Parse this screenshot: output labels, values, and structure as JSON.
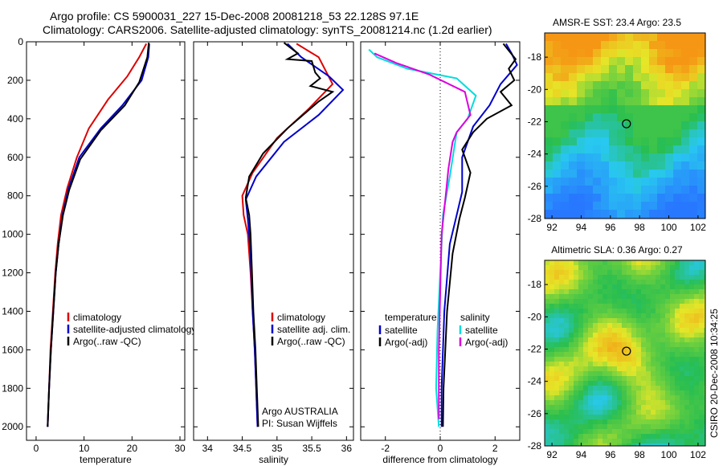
{
  "header": {
    "line1": "Argo profile: CS 5900031_227 15-Dec-2008 20081218_53 22.128S 97.1E",
    "line2": "Climatology: CARS2006. Satellite-adjusted climatology: synTS_20081214.nc (1.2d earlier)"
  },
  "side_stamp": "CSIRO 20-Dec-2008 10:34:25",
  "chart_data": [
    {
      "type": "line",
      "id": "temperature",
      "xlabel": "temperature",
      "ylabel": "",
      "xlim": [
        -2,
        31
      ],
      "ylim": [
        2070,
        0
      ],
      "xticks": [
        0,
        10,
        20,
        30
      ],
      "yticks": [
        0,
        200,
        400,
        600,
        800,
        1000,
        1200,
        1400,
        1600,
        1800,
        2000
      ],
      "legend": [
        "climatology",
        "satellite-adjusted climatology",
        "Argo(..raw -QC)"
      ],
      "series": [
        {
          "name": "climatology",
          "color": "#dd0000",
          "points": [
            [
              23.0,
              10
            ],
            [
              21.5,
              80
            ],
            [
              19,
              180
            ],
            [
              15,
              300
            ],
            [
              11,
              450
            ],
            [
              8.5,
              600
            ],
            [
              6.5,
              760
            ],
            [
              5.2,
              900
            ],
            [
              4.5,
              1050
            ],
            [
              4.0,
              1200
            ],
            [
              3.5,
              1400
            ],
            [
              3.0,
              1600
            ],
            [
              2.7,
              1800
            ],
            [
              2.4,
              2000
            ]
          ]
        },
        {
          "name": "satellite-adjusted climatology",
          "color": "#0000cc",
          "points": [
            [
              23.6,
              10
            ],
            [
              23.4,
              80
            ],
            [
              22,
              200
            ],
            [
              18,
              330
            ],
            [
              13.5,
              450
            ],
            [
              9,
              600
            ],
            [
              6.8,
              760
            ],
            [
              5.5,
              900
            ],
            [
              4.7,
              1050
            ],
            [
              4.1,
              1200
            ],
            [
              3.6,
              1400
            ],
            [
              3.1,
              1600
            ],
            [
              2.7,
              1800
            ],
            [
              2.4,
              2000
            ]
          ]
        },
        {
          "name": "Argo(..raw -QC)",
          "color": "#000000",
          "points": [
            [
              23.5,
              5
            ],
            [
              23.2,
              80
            ],
            [
              21.5,
              210
            ],
            [
              18.5,
              330
            ],
            [
              13.5,
              460
            ],
            [
              9.2,
              610
            ],
            [
              6.9,
              770
            ],
            [
              5.6,
              900
            ],
            [
              4.7,
              1050
            ],
            [
              4.1,
              1200
            ],
            [
              3.6,
              1400
            ],
            [
              3.1,
              1600
            ],
            [
              2.7,
              1800
            ],
            [
              2.4,
              2000
            ]
          ]
        }
      ]
    },
    {
      "type": "line",
      "id": "salinity",
      "xlabel": "salinity",
      "ylabel": "",
      "xlim": [
        33.8,
        36.1
      ],
      "ylim": [
        2070,
        0
      ],
      "xticks": [
        34,
        34.5,
        35,
        35.5,
        36
      ],
      "legend": [
        "climatology",
        "satellite adj. clim.",
        "Argo(..raw -QC)"
      ],
      "annotation": [
        "Argo AUSTRALIA",
        "PI: Susan Wijffels"
      ],
      "series": [
        {
          "name": "climatology",
          "color": "#dd0000",
          "points": [
            [
              35.28,
              10
            ],
            [
              35.6,
              80
            ],
            [
              35.8,
              220
            ],
            [
              35.45,
              350
            ],
            [
              35.0,
              500
            ],
            [
              34.65,
              680
            ],
            [
              34.5,
              800
            ],
            [
              34.52,
              900
            ],
            [
              34.58,
              1000
            ],
            [
              34.62,
              1200
            ],
            [
              34.65,
              1400
            ],
            [
              34.68,
              1600
            ],
            [
              34.7,
              1800
            ],
            [
              34.72,
              2000
            ]
          ]
        },
        {
          "name": "satellite adj. clim.",
          "color": "#0000cc",
          "points": [
            [
              35.15,
              10
            ],
            [
              35.35,
              80
            ],
            [
              35.75,
              180
            ],
            [
              35.95,
              250
            ],
            [
              35.6,
              380
            ],
            [
              35.1,
              520
            ],
            [
              34.7,
              700
            ],
            [
              34.55,
              820
            ],
            [
              34.58,
              920
            ],
            [
              34.62,
              1100
            ],
            [
              34.65,
              1400
            ],
            [
              34.68,
              1600
            ],
            [
              34.7,
              1800
            ],
            [
              34.72,
              2000
            ]
          ]
        },
        {
          "name": "Argo(..raw -QC)",
          "color": "#000000",
          "points": [
            [
              35.1,
              5
            ],
            [
              35.3,
              60
            ],
            [
              35.15,
              90
            ],
            [
              35.5,
              100
            ],
            [
              35.55,
              160
            ],
            [
              35.62,
              190
            ],
            [
              35.48,
              230
            ],
            [
              35.8,
              260
            ],
            [
              35.6,
              310
            ],
            [
              35.15,
              450
            ],
            [
              34.8,
              580
            ],
            [
              34.6,
              700
            ],
            [
              34.55,
              810
            ],
            [
              34.6,
              900
            ],
            [
              34.62,
              1000
            ],
            [
              34.64,
              1200
            ],
            [
              34.66,
              1400
            ],
            [
              34.69,
              1600
            ],
            [
              34.71,
              1800
            ],
            [
              34.73,
              2000
            ]
          ]
        }
      ]
    },
    {
      "type": "line",
      "id": "difference",
      "xlabel": "difference from climatology",
      "ylabel": "",
      "xlim": [
        -2.9,
        2.9
      ],
      "ylim": [
        2070,
        0
      ],
      "xticks": [
        -2,
        0,
        2
      ],
      "legend_groups": [
        {
          "title": "temperature",
          "entries": [
            "satellite",
            "Argo(-adj)"
          ]
        },
        {
          "title": "salinity",
          "entries": [
            "satellite",
            "Argo(-adj)"
          ]
        }
      ],
      "series": [
        {
          "name": "temperature satellite",
          "color": "#0000cc",
          "points": [
            [
              2.4,
              10
            ],
            [
              2.6,
              60
            ],
            [
              2.8,
              120
            ],
            [
              2.2,
              220
            ],
            [
              1.8,
              330
            ],
            [
              1.2,
              440
            ],
            [
              0.8,
              600
            ],
            [
              0.8,
              780
            ],
            [
              0.6,
              900
            ],
            [
              0.35,
              1050
            ],
            [
              0.15,
              1400
            ],
            [
              0.05,
              1800
            ],
            [
              0.05,
              2000
            ]
          ]
        },
        {
          "name": "temperature Argo(-adj)",
          "color": "#000000",
          "points": [
            [
              2.3,
              10
            ],
            [
              2.75,
              90
            ],
            [
              2.5,
              140
            ],
            [
              2.7,
              200
            ],
            [
              2.2,
              260
            ],
            [
              2.6,
              330
            ],
            [
              1.7,
              400
            ],
            [
              1.2,
              470
            ],
            [
              0.8,
              560
            ],
            [
              1.1,
              680
            ],
            [
              0.9,
              810
            ],
            [
              0.7,
              920
            ],
            [
              0.45,
              1100
            ],
            [
              0.25,
              1400
            ],
            [
              0.12,
              1800
            ],
            [
              0.1,
              2000
            ]
          ]
        },
        {
          "name": "salinity satellite",
          "color": "#00dddd",
          "points": [
            [
              -2.6,
              40
            ],
            [
              -2.3,
              80
            ],
            [
              -1.2,
              140
            ],
            [
              0.6,
              190
            ],
            [
              1.3,
              280
            ],
            [
              1.0,
              400
            ],
            [
              0.6,
              470
            ],
            [
              0.5,
              560
            ],
            [
              0.35,
              700
            ],
            [
              0.1,
              900
            ],
            [
              0.0,
              1200
            ],
            [
              -0.1,
              1500
            ],
            [
              -0.15,
              1800
            ],
            [
              -0.05,
              2000
            ]
          ]
        },
        {
          "name": "salinity Argo(-adj)",
          "color": "#dd00dd",
          "points": [
            [
              -2.4,
              60
            ],
            [
              -1.6,
              110
            ],
            [
              -0.4,
              170
            ],
            [
              0.9,
              260
            ],
            [
              1.1,
              380
            ],
            [
              0.6,
              470
            ],
            [
              0.45,
              520
            ],
            [
              0.3,
              660
            ],
            [
              0.2,
              800
            ],
            [
              0.05,
              1000
            ],
            [
              0.0,
              1300
            ],
            [
              -0.05,
              1600
            ],
            [
              -0.05,
              1800
            ],
            [
              -0.05,
              1960
            ]
          ]
        }
      ]
    },
    {
      "type": "heatmap",
      "id": "sst-map",
      "title": "AMSR-E SST: 23.4 Argo: 23.5",
      "xlim": [
        91.5,
        102.5
      ],
      "ylim": [
        -28,
        -16.5
      ],
      "xticks": [
        92,
        94,
        96,
        98,
        100,
        102
      ],
      "yticks": [
        -18,
        -20,
        -22,
        -24,
        -26,
        -28
      ],
      "marker": [
        97.1,
        -22.128
      ]
    },
    {
      "type": "heatmap",
      "id": "sla-map",
      "title": "Altimetric SLA: 0.36 Argo: 0.27",
      "xlim": [
        91.5,
        102.5
      ],
      "ylim": [
        -28,
        -16.5
      ],
      "xticks": [
        92,
        94,
        96,
        98,
        100,
        102
      ],
      "yticks": [
        -18,
        -20,
        -22,
        -24,
        -26,
        -28
      ],
      "marker": [
        97.1,
        -22.128
      ]
    }
  ]
}
